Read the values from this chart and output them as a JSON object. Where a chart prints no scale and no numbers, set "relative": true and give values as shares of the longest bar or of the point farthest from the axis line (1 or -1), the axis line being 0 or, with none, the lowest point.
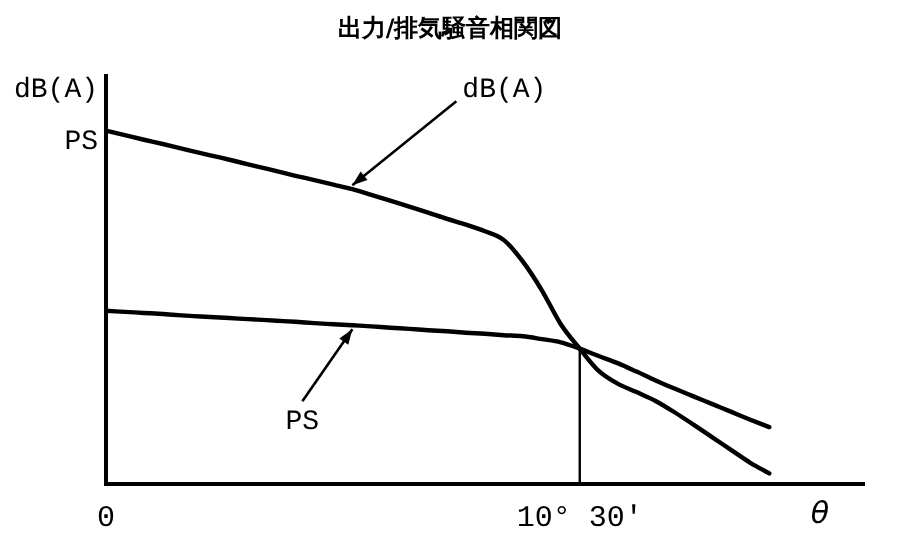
{
  "chart_data": {
    "type": "line",
    "title": "出力/排気騒音相関図",
    "xlabel": "θ",
    "ylabel": "dB(A)\nPS",
    "relative": true,
    "grid": false,
    "legend": false,
    "marker": "none",
    "line_style": "solid",
    "categories": [
      "0",
      null,
      null,
      null,
      null,
      null,
      null,
      null,
      null,
      null,
      null,
      null,
      null,
      null,
      null,
      null,
      null,
      null,
      null,
      null,
      null,
      null,
      null,
      null,
      null,
      "10° 30'",
      null,
      null,
      null,
      null,
      null,
      null,
      null,
      null,
      null,
      null,
      null,
      null,
      null,
      null,
      null
    ],
    "ref_lines": [
      {
        "axis": "x",
        "value": "10° 30'",
        "color": "#000000"
      }
    ],
    "series": [
      {
        "name": "dB(A)",
        "color": "#000000",
        "values": [
          1,
          0.987,
          0.974,
          0.962,
          0.949,
          0.936,
          0.924,
          0.911,
          0.898,
          0.885,
          0.872,
          0.86,
          0.847,
          0.834,
          0.818,
          0.802,
          0.785,
          0.768,
          0.75,
          0.734,
          0.715,
          0.69,
          0.629,
          0.548,
          0.452,
          0.383,
          0.32,
          0.284,
          0.26,
          0.235,
          0.203,
          0.168,
          0.132,
          0.096,
          0.06,
          0.03,
          null,
          null,
          null,
          null,
          null
        ]
      },
      {
        "name": "PS",
        "color": "#000000",
        "values": [
          0.49,
          0.487,
          0.484,
          0.481,
          0.477,
          0.474,
          0.471,
          0.468,
          0.465,
          0.462,
          0.459,
          0.455,
          0.452,
          0.449,
          0.446,
          0.442,
          0.439,
          0.435,
          0.432,
          0.428,
          0.425,
          0.421,
          0.418,
          0.41,
          0.401,
          0.383,
          0.362,
          0.342,
          0.318,
          0.293,
          0.27,
          0.248,
          0.226,
          0.204,
          0.182,
          0.161,
          null,
          null,
          null,
          null,
          null
        ]
      }
    ]
  }
}
